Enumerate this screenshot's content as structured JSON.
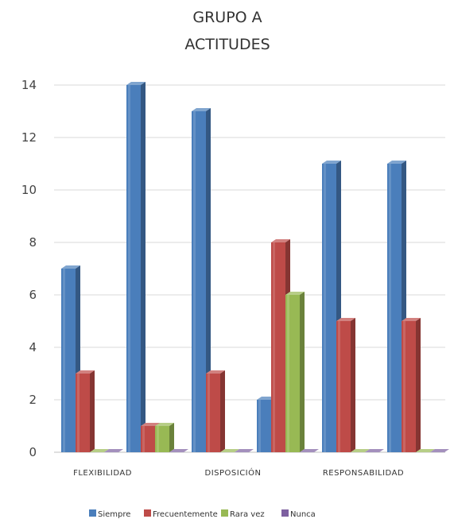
{
  "chart_data": {
    "type": "bar",
    "title": [
      "GRUPO A",
      "ACTITUDES"
    ],
    "categories": [
      "FLEXIBILIDAD",
      "",
      "DISPOSICIÓN",
      "",
      "RESPONSABILIDAD",
      ""
    ],
    "series": [
      {
        "name": "Siempre",
        "color": "#4a7ebb",
        "values": [
          7,
          14,
          13,
          2,
          11,
          11
        ]
      },
      {
        "name": "Frecuentemente",
        "color": "#be4b48",
        "values": [
          3,
          1,
          3,
          8,
          5,
          5
        ]
      },
      {
        "name": "Rara vez",
        "color": "#98b954",
        "values": [
          0,
          1,
          0,
          6,
          0,
          0
        ]
      },
      {
        "name": "Nunca",
        "color": "#7d60a0",
        "values": [
          0,
          0,
          0,
          0,
          0,
          0
        ]
      }
    ],
    "ylim": [
      0,
      14
    ],
    "yticks": [
      0,
      2,
      4,
      6,
      8,
      10,
      12,
      14
    ],
    "grid": true,
    "legend": "bottom",
    "xlabel": "",
    "ylabel": ""
  }
}
